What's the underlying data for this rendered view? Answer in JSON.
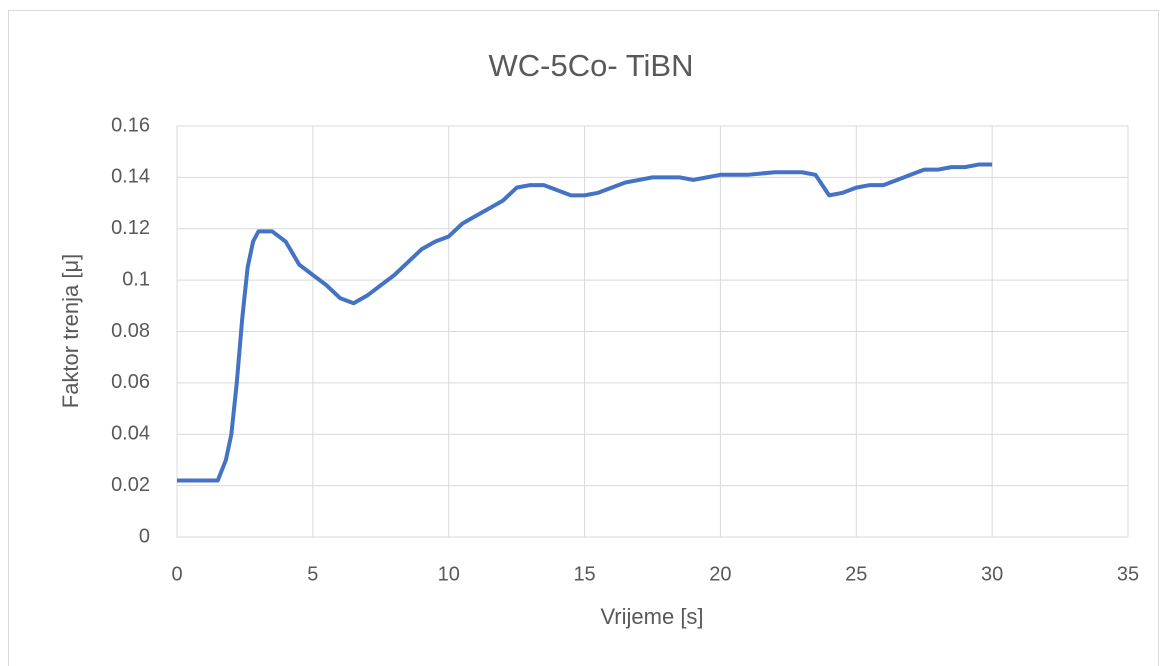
{
  "chart_data": {
    "type": "line",
    "title": "WC-5Co- TiBN",
    "x_label": "Vrijeme [s]",
    "y_label": "Faktor trenja [μ]",
    "x": [
      0,
      0.5,
      1,
      1.5,
      1.8,
      2.0,
      2.2,
      2.4,
      2.6,
      2.8,
      3.0,
      3.5,
      4.0,
      4.5,
      5.0,
      5.5,
      6.0,
      6.5,
      7,
      7.5,
      8,
      8.5,
      9,
      9.5,
      10,
      10.5,
      11,
      11.5,
      12,
      12.5,
      13,
      13.5,
      14,
      14.5,
      15,
      15.5,
      16,
      16.5,
      17,
      17.5,
      18,
      18.5,
      19,
      19.5,
      20,
      21,
      22,
      23,
      23.5,
      24,
      24.5,
      25,
      25.5,
      26,
      26.5,
      27,
      27.5,
      28,
      28.5,
      29,
      29.5,
      30
    ],
    "series": [
      {
        "name": "WC-5Co- TiBN",
        "color": "#4472c4",
        "values": [
          0.022,
          0.022,
          0.022,
          0.022,
          0.03,
          0.04,
          0.06,
          0.085,
          0.105,
          0.115,
          0.119,
          0.119,
          0.115,
          0.106,
          0.102,
          0.098,
          0.093,
          0.091,
          0.094,
          0.098,
          0.102,
          0.107,
          0.112,
          0.115,
          0.117,
          0.122,
          0.125,
          0.128,
          0.131,
          0.136,
          0.137,
          0.137,
          0.135,
          0.133,
          0.133,
          0.134,
          0.136,
          0.138,
          0.139,
          0.14,
          0.14,
          0.14,
          0.139,
          0.14,
          0.141,
          0.141,
          0.142,
          0.142,
          0.141,
          0.133,
          0.134,
          0.136,
          0.137,
          0.137,
          0.139,
          0.141,
          0.143,
          0.143,
          0.144,
          0.144,
          0.145,
          0.145
        ]
      }
    ],
    "xlim": [
      0,
      35
    ],
    "xticks": [
      0,
      5,
      10,
      15,
      20,
      25,
      30,
      35
    ],
    "ylim": [
      0,
      0.16
    ],
    "yticks": [
      0,
      0.02,
      0.04,
      0.06,
      0.08,
      0.1,
      0.12,
      0.14,
      0.16
    ],
    "grid": true
  }
}
